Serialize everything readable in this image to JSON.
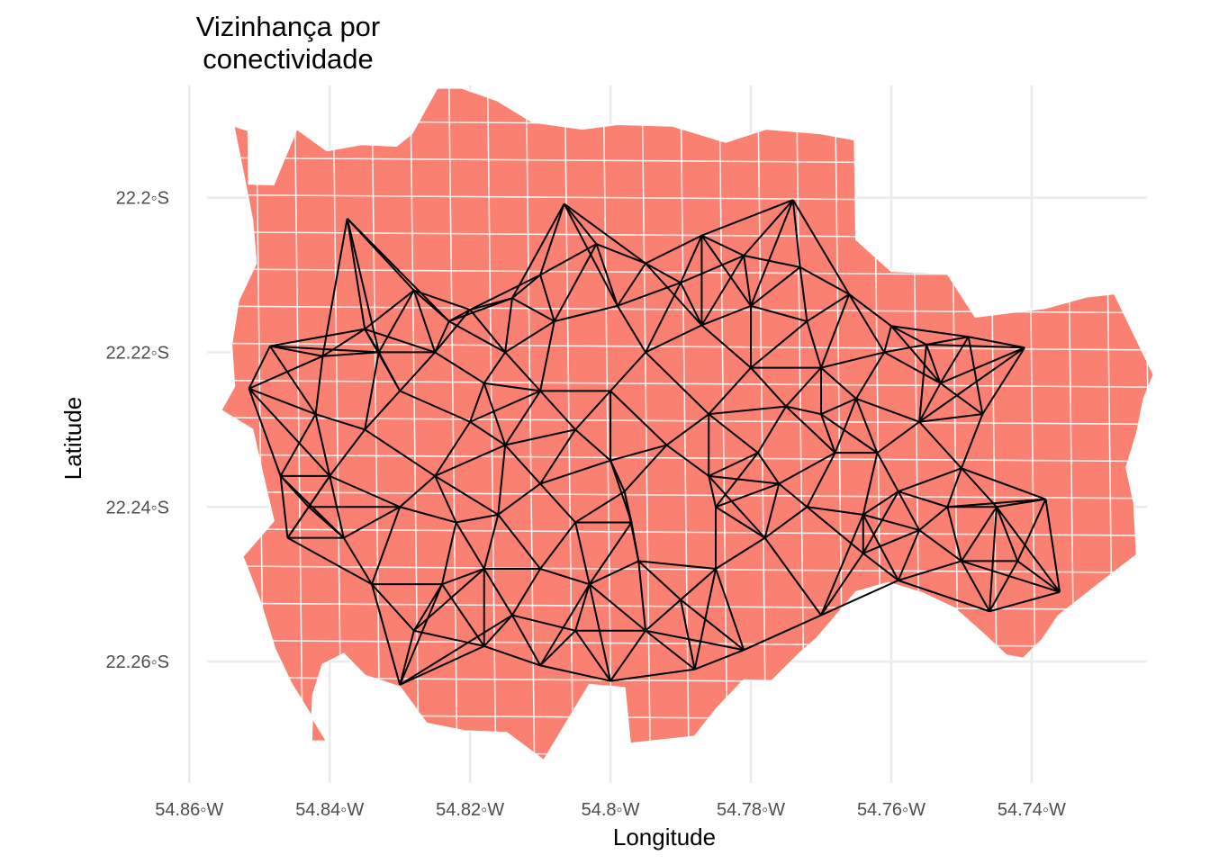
{
  "chart_data": {
    "type": "map",
    "title_lines": [
      "Vizinhança por",
      "conectividade"
    ],
    "xlabel": "Longitude",
    "ylabel": "Latitude",
    "x_ticks": [
      {
        "value": -54.86,
        "label": "54.86◦W"
      },
      {
        "value": -54.84,
        "label": "54.84◦W"
      },
      {
        "value": -54.82,
        "label": "54.82◦W"
      },
      {
        "value": -54.8,
        "label": "54.8◦W"
      },
      {
        "value": -54.78,
        "label": "54.78◦W"
      },
      {
        "value": -54.76,
        "label": "54.76◦W"
      },
      {
        "value": -54.74,
        "label": "54.74◦W"
      }
    ],
    "y_ticks": [
      {
        "value": -22.2,
        "label": "22.2◦S"
      },
      {
        "value": -22.22,
        "label": "22.22◦S"
      },
      {
        "value": -22.24,
        "label": "22.24◦S"
      },
      {
        "value": -22.26,
        "label": "22.26◦S"
      }
    ],
    "xlim": [
      -54.8626,
      -54.7228
    ],
    "ylim": [
      -22.2757,
      -22.1855
    ],
    "grid": true,
    "fill_color": "#fa8072",
    "border_color": "#ffffff",
    "edge_color": "#000000",
    "region_outline": [
      [
        -54.8537,
        -22.1907
      ],
      [
        -54.8516,
        -22.1913
      ],
      [
        -54.8515,
        -22.1982
      ],
      [
        -54.848,
        -22.1983
      ],
      [
        -54.8447,
        -22.1911
      ],
      [
        -54.8404,
        -22.1939
      ],
      [
        -54.8355,
        -22.1931
      ],
      [
        -54.8305,
        -22.1933
      ],
      [
        -54.8283,
        -22.1917
      ],
      [
        -54.8247,
        -22.1858
      ],
      [
        -54.8212,
        -22.1858
      ],
      [
        -54.8162,
        -22.1874
      ],
      [
        -54.8111,
        -22.1902
      ],
      [
        -54.804,
        -22.1911
      ],
      [
        -54.799,
        -22.1905
      ],
      [
        -54.7912,
        -22.1907
      ],
      [
        -54.7836,
        -22.1928
      ],
      [
        -54.7778,
        -22.1911
      ],
      [
        -54.77,
        -22.1917
      ],
      [
        -54.7652,
        -22.1925
      ],
      [
        -54.765,
        -22.2054
      ],
      [
        -54.76,
        -22.2095
      ],
      [
        -54.752,
        -22.2098
      ],
      [
        -54.748,
        -22.2154
      ],
      [
        -54.7436,
        -22.2149
      ],
      [
        -54.7382,
        -22.2143
      ],
      [
        -54.7322,
        -22.2128
      ],
      [
        -54.7282,
        -22.2124
      ],
      [
        -54.7226,
        -22.2229
      ],
      [
        -54.724,
        -22.226
      ],
      [
        -54.725,
        -22.2305
      ],
      [
        -54.7265,
        -22.2349
      ],
      [
        -54.7254,
        -22.2395
      ],
      [
        -54.725,
        -22.2462
      ],
      [
        -54.7306,
        -22.2501
      ],
      [
        -54.7362,
        -22.2541
      ],
      [
        -54.7385,
        -22.2572
      ],
      [
        -54.7412,
        -22.2596
      ],
      [
        -54.7436,
        -22.2592
      ],
      [
        -54.7468,
        -22.2565
      ],
      [
        -54.751,
        -22.2531
      ],
      [
        -54.7554,
        -22.2512
      ],
      [
        -54.7604,
        -22.2498
      ],
      [
        -54.765,
        -22.251
      ],
      [
        -54.7706,
        -22.257
      ],
      [
        -54.7729,
        -22.2588
      ],
      [
        -54.777,
        -22.2625
      ],
      [
        -54.781,
        -22.2624
      ],
      [
        -54.7848,
        -22.266
      ],
      [
        -54.788,
        -22.2697
      ],
      [
        -54.7972,
        -22.2706
      ],
      [
        -54.798,
        -22.2634
      ],
      [
        -54.803,
        -22.263
      ],
      [
        -54.8095,
        -22.2728
      ],
      [
        -54.8148,
        -22.2692
      ],
      [
        -54.8207,
        -22.269
      ],
      [
        -54.8262,
        -22.268
      ],
      [
        -54.83,
        -22.2633
      ],
      [
        -54.835,
        -22.2618
      ],
      [
        -54.838,
        -22.259
      ],
      [
        -54.841,
        -22.2604
      ],
      [
        -54.8424,
        -22.2644
      ],
      [
        -54.8426,
        -22.2703
      ],
      [
        -54.8404,
        -22.2703
      ],
      [
        -54.8455,
        -22.2628
      ],
      [
        -54.8478,
        -22.2584
      ],
      [
        -54.85,
        -22.252
      ],
      [
        -54.8524,
        -22.2464
      ],
      [
        -54.848,
        -22.2418
      ],
      [
        -54.8495,
        -22.236
      ],
      [
        -54.851,
        -22.23
      ],
      [
        -54.8555,
        -22.2275
      ],
      [
        -54.8536,
        -22.2244
      ],
      [
        -54.854,
        -22.219
      ],
      [
        -54.853,
        -22.2133
      ],
      [
        -54.8505,
        -22.2085
      ],
      [
        -54.851,
        -22.203
      ],
      [
        -54.8523,
        -22.197
      ]
    ],
    "nodes": [
      [
        -54.8375,
        -22.2027
      ],
      [
        -54.8066,
        -22.2008
      ],
      [
        -54.774,
        -22.2003
      ],
      [
        -54.8485,
        -22.2192
      ],
      [
        -54.8515,
        -22.2247
      ],
      [
        -54.841,
        -22.2205
      ],
      [
        -54.835,
        -22.217
      ],
      [
        -54.828,
        -22.212
      ],
      [
        -54.82,
        -22.2145
      ],
      [
        -54.81,
        -22.21
      ],
      [
        -54.802,
        -22.206
      ],
      [
        -54.795,
        -22.2085
      ],
      [
        -54.787,
        -22.2049
      ],
      [
        -54.781,
        -22.2075
      ],
      [
        -54.773,
        -22.209
      ],
      [
        -54.766,
        -22.2125
      ],
      [
        -54.76,
        -22.2166
      ],
      [
        -54.755,
        -22.219
      ],
      [
        -54.741,
        -22.2194
      ],
      [
        -54.747,
        -22.228
      ],
      [
        -54.738,
        -22.239
      ],
      [
        -54.736,
        -22.251
      ],
      [
        -54.746,
        -22.2535
      ],
      [
        -54.759,
        -22.2495
      ],
      [
        -54.77,
        -22.254
      ],
      [
        -54.781,
        -22.2585
      ],
      [
        -54.788,
        -22.261
      ],
      [
        -54.8,
        -22.2625
      ],
      [
        -54.81,
        -22.2605
      ],
      [
        -54.818,
        -22.258
      ],
      [
        -54.828,
        -22.256
      ],
      [
        -54.83,
        -22.263
      ],
      [
        -54.818,
        -22.248
      ],
      [
        -54.822,
        -22.242
      ],
      [
        -54.825,
        -22.236
      ],
      [
        -54.83,
        -22.24
      ],
      [
        -54.838,
        -22.244
      ],
      [
        -54.846,
        -22.244
      ],
      [
        -54.847,
        -22.236
      ],
      [
        -54.84,
        -22.236
      ],
      [
        -54.835,
        -22.23
      ],
      [
        -54.83,
        -22.225
      ],
      [
        -54.825,
        -22.22
      ],
      [
        -54.815,
        -22.22
      ],
      [
        -54.81,
        -22.225
      ],
      [
        -54.805,
        -22.23
      ],
      [
        -54.8,
        -22.225
      ],
      [
        -54.795,
        -22.22
      ],
      [
        -54.787,
        -22.2165
      ],
      [
        -54.78,
        -22.222
      ],
      [
        -54.775,
        -22.227
      ],
      [
        -54.77,
        -22.222
      ],
      [
        -54.765,
        -22.226
      ],
      [
        -54.762,
        -22.233
      ],
      [
        -54.756,
        -22.229
      ],
      [
        -54.75,
        -22.235
      ],
      [
        -54.745,
        -22.24
      ],
      [
        -54.742,
        -22.247
      ],
      [
        -54.75,
        -22.247
      ],
      [
        -54.756,
        -22.243
      ],
      [
        -54.764,
        -22.241
      ],
      [
        -54.772,
        -22.24
      ],
      [
        -54.778,
        -22.244
      ],
      [
        -54.785,
        -22.24
      ],
      [
        -54.792,
        -22.232
      ],
      [
        -54.798,
        -22.238
      ],
      [
        -54.805,
        -22.242
      ],
      [
        -54.81,
        -22.237
      ],
      [
        -54.815,
        -22.232
      ],
      [
        -54.82,
        -22.229
      ],
      [
        -54.81,
        -22.248
      ],
      [
        -54.803,
        -22.25
      ],
      [
        -54.796,
        -22.247
      ],
      [
        -54.79,
        -22.252
      ],
      [
        -54.785,
        -22.248
      ],
      [
        -54.795,
        -22.256
      ],
      [
        -54.805,
        -22.256
      ],
      [
        -54.814,
        -22.254
      ],
      [
        -54.824,
        -22.25
      ],
      [
        -54.768,
        -22.233
      ],
      [
        -54.779,
        -22.233
      ],
      [
        -54.786,
        -22.228
      ],
      [
        -54.772,
        -22.216
      ],
      [
        -54.761,
        -22.22
      ],
      [
        -54.753,
        -22.224
      ],
      [
        -54.842,
        -22.228
      ],
      [
        -54.833,
        -22.22
      ],
      [
        -54.818,
        -22.224
      ],
      [
        -54.808,
        -22.216
      ],
      [
        -54.799,
        -22.214
      ],
      [
        -54.79,
        -22.211
      ],
      [
        -54.78,
        -22.214
      ],
      [
        -54.77,
        -22.228
      ],
      [
        -54.759,
        -22.238
      ],
      [
        -54.749,
        -22.218
      ],
      [
        -54.786,
        -22.236
      ],
      [
        -54.8,
        -22.234
      ],
      [
        -54.816,
        -22.241
      ],
      [
        -54.834,
        -22.25
      ],
      [
        -54.843,
        -22.24
      ],
      [
        -54.823,
        -22.216
      ],
      [
        -54.814,
        -22.213
      ],
      [
        -54.797,
        -22.242
      ],
      [
        -54.776,
        -22.237
      ],
      [
        -54.764,
        -22.246
      ],
      [
        -54.752,
        -22.24
      ]
    ]
  }
}
